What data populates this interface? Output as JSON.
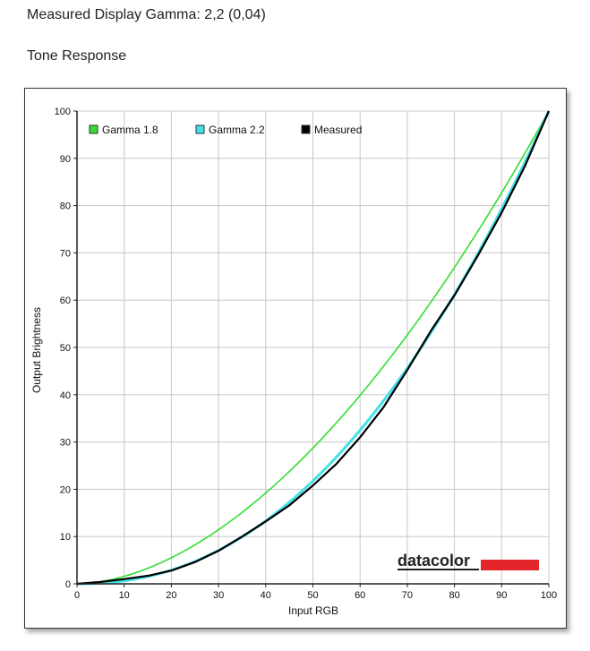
{
  "header": {
    "measured_label": "Measured Display Gamma: 2,2 (0,04)",
    "section_title": "Tone Response"
  },
  "colors": {
    "gamma18": "#33dd33",
    "gamma22": "#44e0e8",
    "measured": "#000000",
    "grid": "#c8c8c8",
    "brand_bar": "#e3262b"
  },
  "brand": {
    "logo_text": "datacolor"
  },
  "chart_data": {
    "type": "line",
    "xlabel": "Input RGB",
    "ylabel": "Output Brightness",
    "xlim": [
      0,
      100
    ],
    "ylim": [
      0,
      100
    ],
    "xticks": [
      "0",
      "10",
      "20",
      "30",
      "40",
      "50",
      "60",
      "70",
      "80",
      "90",
      "100"
    ],
    "yticks": [
      "0",
      "10",
      "20",
      "30",
      "40",
      "50",
      "60",
      "70",
      "80",
      "90",
      "100"
    ],
    "grid": true,
    "legend_position": "top-left",
    "series": [
      {
        "name": "Gamma 1.8",
        "color": "#33dd33",
        "gamma": 1.8
      },
      {
        "name": "Gamma 2.2",
        "color": "#44e0e8",
        "gamma": 2.2
      },
      {
        "name": "Measured",
        "color": "#000000",
        "x": [
          0,
          5,
          10,
          15,
          20,
          25,
          30,
          35,
          40,
          45,
          50,
          55,
          60,
          65,
          70,
          75,
          80,
          85,
          90,
          95,
          100
        ],
        "y": [
          0,
          0.4,
          1.0,
          1.7,
          2.8,
          4.6,
          7.0,
          10.0,
          13.2,
          16.6,
          20.8,
          25.4,
          31.0,
          37.4,
          45.2,
          53.5,
          61.0,
          69.5,
          78.5,
          88.5,
          100
        ]
      }
    ]
  }
}
